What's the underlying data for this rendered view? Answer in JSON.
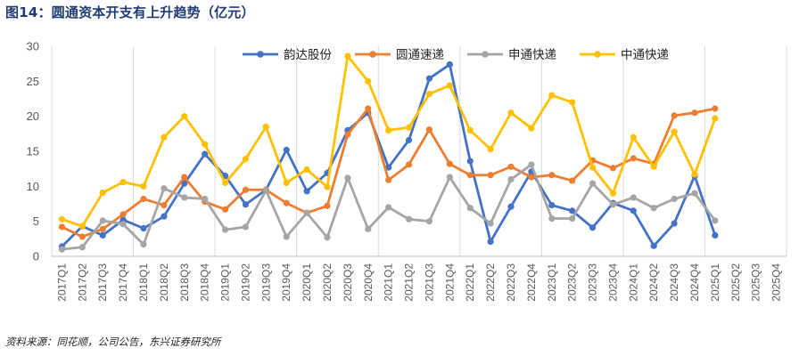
{
  "title": "图14：圆通资本开支有上升趋势（亿元）",
  "source": "资料来源：同花顺，公司公告，东兴证券研究所",
  "chart_data": {
    "type": "line",
    "ylim": [
      0,
      30
    ],
    "yticks": [
      0,
      5,
      10,
      15,
      20,
      25,
      30
    ],
    "legend_position": "top-right",
    "categories": [
      "2017Q1",
      "2017Q2",
      "2017Q3",
      "2017Q4",
      "2018Q1",
      "2018Q2",
      "2018Q3",
      "2018Q4",
      "2019Q1",
      "2019Q2",
      "2019Q3",
      "2019Q4",
      "2020Q1",
      "2020Q2",
      "2020Q3",
      "2020Q4",
      "2021Q1",
      "2021Q2",
      "2021Q3",
      "2021Q4",
      "2022Q1",
      "2022Q2",
      "2022Q3",
      "2022Q4",
      "2023Q1",
      "2023Q2",
      "2023Q3",
      "2023Q4",
      "2024Q1",
      "2024Q2",
      "2024Q3",
      "2024Q4",
      "2025Q1",
      "2025Q2",
      "2025Q3",
      "2025Q4"
    ],
    "series": [
      {
        "name": "韵达股份",
        "color": "#4472c4",
        "values": [
          1.4,
          4.3,
          3.0,
          5.2,
          4.0,
          5.7,
          10.4,
          14.6,
          11.5,
          7.4,
          9.5,
          15.2,
          9.3,
          11.9,
          18.0,
          20.5,
          12.7,
          16.6,
          25.4,
          27.4,
          13.6,
          2.1,
          7.1,
          12.1,
          7.3,
          6.5,
          4.1,
          7.6,
          6.5,
          1.5,
          4.7,
          11.5,
          3.0,
          null,
          null,
          null
        ]
      },
      {
        "name": "圆通速递",
        "color": "#ed7d31",
        "values": [
          4.2,
          2.8,
          3.9,
          6.0,
          8.2,
          7.3,
          11.3,
          7.8,
          6.7,
          9.5,
          9.5,
          7.6,
          6.2,
          7.2,
          17.4,
          21.1,
          10.9,
          13.1,
          18.1,
          13.2,
          11.6,
          11.6,
          12.8,
          11.3,
          11.6,
          10.8,
          13.7,
          12.6,
          14.0,
          13.2,
          20.1,
          20.5,
          21.1,
          null,
          null,
          null
        ]
      },
      {
        "name": "申通快递",
        "color": "#a5a5a5",
        "values": [
          1.0,
          1.3,
          5.1,
          4.6,
          1.7,
          9.7,
          8.4,
          8.2,
          3.8,
          4.2,
          9.4,
          2.8,
          6.2,
          2.7,
          11.2,
          3.9,
          7.0,
          5.3,
          5.0,
          11.3,
          6.9,
          4.7,
          11.0,
          13.1,
          5.4,
          5.4,
          10.4,
          7.4,
          8.4,
          6.9,
          8.2,
          9.0,
          5.1,
          null,
          null,
          null
        ]
      },
      {
        "name": "中通快递",
        "color": "#ffc000",
        "values": [
          5.3,
          4.3,
          9.1,
          10.6,
          10.0,
          17.0,
          20.0,
          16.0,
          10.5,
          13.9,
          18.5,
          10.5,
          12.4,
          9.9,
          28.6,
          25.0,
          18.0,
          18.4,
          23.2,
          24.4,
          18.0,
          15.3,
          20.5,
          18.3,
          23.0,
          22.0,
          12.7,
          9.0,
          17.0,
          12.8,
          17.8,
          11.7,
          19.7,
          null,
          null,
          null
        ]
      }
    ]
  }
}
